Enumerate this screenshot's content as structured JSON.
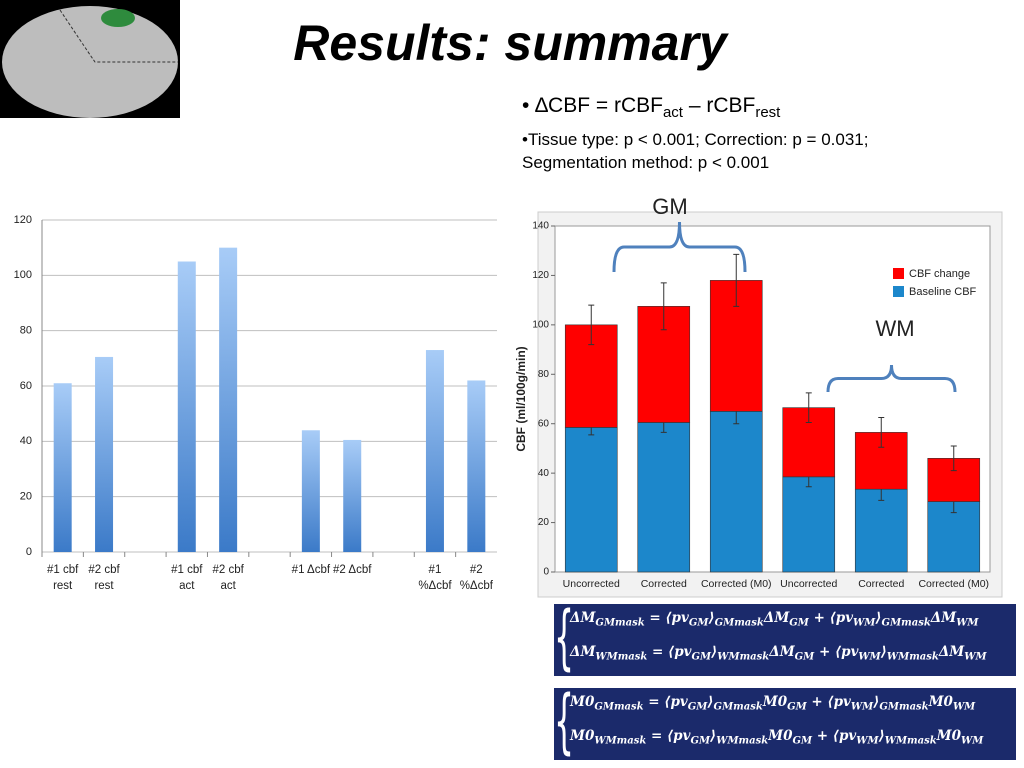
{
  "title": "Results: summary",
  "formula": [
    [
      "• ∆CBF = rCBF",
      "act"
    ],
    [
      " – rCBF",
      "rest"
    ]
  ],
  "note": "•Tissue type: p < 0.001; Correction: p = 0.031; Segmentation method: p < 0.001",
  "chart_data": [
    {
      "type": "bar",
      "categories": [
        "#1 cbf rest",
        "#2 cbf rest",
        null,
        "#1 cbf act",
        "#2 cbf act",
        null,
        "#1 Δcbf",
        "#2 Δcbf",
        null,
        "#1 %Δcbf",
        "#2 %Δcbf"
      ],
      "values": [
        61,
        70.5,
        null,
        105,
        110,
        null,
        44,
        40.5,
        null,
        73,
        62
      ],
      "gradient": [
        "#a8ccf7",
        "#3b7ac8"
      ],
      "ylim": [
        0,
        120
      ],
      "yticks": [
        0,
        20,
        40,
        60,
        80,
        100,
        120
      ],
      "grid": true
    },
    {
      "type": "stacked_bar",
      "ylabel": "CBF (ml/100g/min)",
      "categories": [
        "Uncorrected",
        "Corrected",
        "Corrected (M0)",
        "Uncorrected",
        "Corrected",
        "Corrected (M0)"
      ],
      "series": [
        {
          "name": "Baseline CBF",
          "color": "#1c87cb",
          "values": [
            58.5,
            60.5,
            65,
            38.5,
            33.5,
            28.5
          ],
          "errors": [
            3,
            4,
            5,
            4,
            4.5,
            4.5
          ]
        },
        {
          "name": "CBF change",
          "color": "#ff0000",
          "values": [
            41.5,
            47,
            53,
            28,
            23,
            17.5
          ],
          "errors": [
            8,
            9.5,
            10.5,
            6,
            6,
            5
          ]
        }
      ],
      "ylim": [
        0,
        140
      ],
      "yticks": [
        0,
        20,
        40,
        60,
        80,
        100,
        120,
        140
      ],
      "legend": "upper-right",
      "annotations": [
        "GM",
        "WM"
      ]
    }
  ],
  "equations": [
    [
      [
        [
          "ΔM",
          "GMmask"
        ],
        [
          " = ⟨pv",
          "GM"
        ],
        [
          "⟩",
          "GMmask"
        ],
        [
          "ΔM",
          "GM"
        ],
        [
          " + ⟨pv",
          "WM"
        ],
        [
          "⟩",
          "GMmask"
        ],
        [
          "ΔM",
          "WM"
        ]
      ],
      [
        [
          "ΔM",
          "WMmask"
        ],
        [
          " = ⟨pv",
          "GM"
        ],
        [
          "⟩",
          "WMmask"
        ],
        [
          "ΔM",
          "GM"
        ],
        [
          " + ⟨pv",
          "WM"
        ],
        [
          "⟩",
          "WMmask"
        ],
        [
          "ΔM",
          "WM"
        ]
      ]
    ],
    [
      [
        [
          "M0",
          "GMmask"
        ],
        [
          " = ⟨pv",
          "GM"
        ],
        [
          "⟩",
          "GMmask"
        ],
        [
          "M0",
          "GM"
        ],
        [
          " + ⟨pv",
          "WM"
        ],
        [
          "⟩",
          "GMmask"
        ],
        [
          "M0",
          "WM"
        ]
      ],
      [
        [
          "M0",
          "WMmask"
        ],
        [
          " = ⟨pv",
          "GM"
        ],
        [
          "⟩",
          "WMmask"
        ],
        [
          "M0",
          "GM"
        ],
        [
          " + ⟨pv",
          "WM"
        ],
        [
          "⟩",
          "WMmask"
        ],
        [
          "M0",
          "WM"
        ]
      ]
    ]
  ]
}
